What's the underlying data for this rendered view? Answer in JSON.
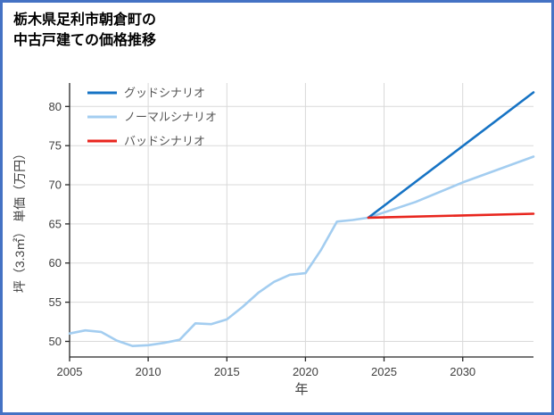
{
  "header": {
    "title_line1": "栃木県足利市朝倉町の",
    "title_line2": "中古戸建ての価格推移"
  },
  "chart_data": {
    "type": "line",
    "title": "栃木県足利市朝倉町の中古戸建ての価格推移",
    "xlabel": "年",
    "ylabel": "坪（3.3㎡） 単価（万円）",
    "xlim": [
      2005,
      2034.5
    ],
    "ylim": [
      48,
      83
    ],
    "xticks": [
      2005,
      2010,
      2015,
      2020,
      2025,
      2030
    ],
    "yticks": [
      50,
      55,
      60,
      65,
      70,
      75,
      80
    ],
    "grid": true,
    "legend_position": "top-left",
    "colors": {
      "grid": "#d9d9d9",
      "axis": "#262626",
      "tick_label": "#404040",
      "legend_text": "#555555",
      "border": "#4472c4",
      "background": "#ffffff"
    },
    "series": [
      {
        "id": "history",
        "legend": false,
        "color": "#a3cdf0",
        "x": [
          2005,
          2006,
          2007,
          2008,
          2009,
          2010,
          2011,
          2012,
          2013,
          2014,
          2015,
          2016,
          2017,
          2018,
          2019,
          2020,
          2021,
          2022,
          2023,
          2024
        ],
        "y": [
          51.0,
          51.4,
          51.2,
          50.1,
          49.4,
          49.5,
          49.8,
          50.2,
          52.3,
          52.2,
          52.8,
          54.4,
          56.2,
          57.6,
          58.5,
          58.7,
          61.7,
          65.3,
          65.5,
          65.8
        ]
      },
      {
        "id": "normal",
        "name": "ノーマルシナリオ",
        "legend": true,
        "legend_order": 2,
        "color": "#a3cdf0",
        "x": [
          2024,
          2027,
          2030,
          2034.5
        ],
        "y": [
          65.8,
          67.8,
          70.3,
          73.6
        ]
      },
      {
        "id": "good",
        "name": "グッドシナリオ",
        "legend": true,
        "legend_order": 1,
        "color": "#1673c4",
        "x": [
          2024,
          2034.5
        ],
        "y": [
          65.8,
          81.8
        ]
      },
      {
        "id": "bad",
        "name": "バッドシナリオ",
        "legend": true,
        "legend_order": 3,
        "color": "#e8251d",
        "x": [
          2024,
          2034.5
        ],
        "y": [
          65.8,
          66.3
        ]
      }
    ]
  }
}
